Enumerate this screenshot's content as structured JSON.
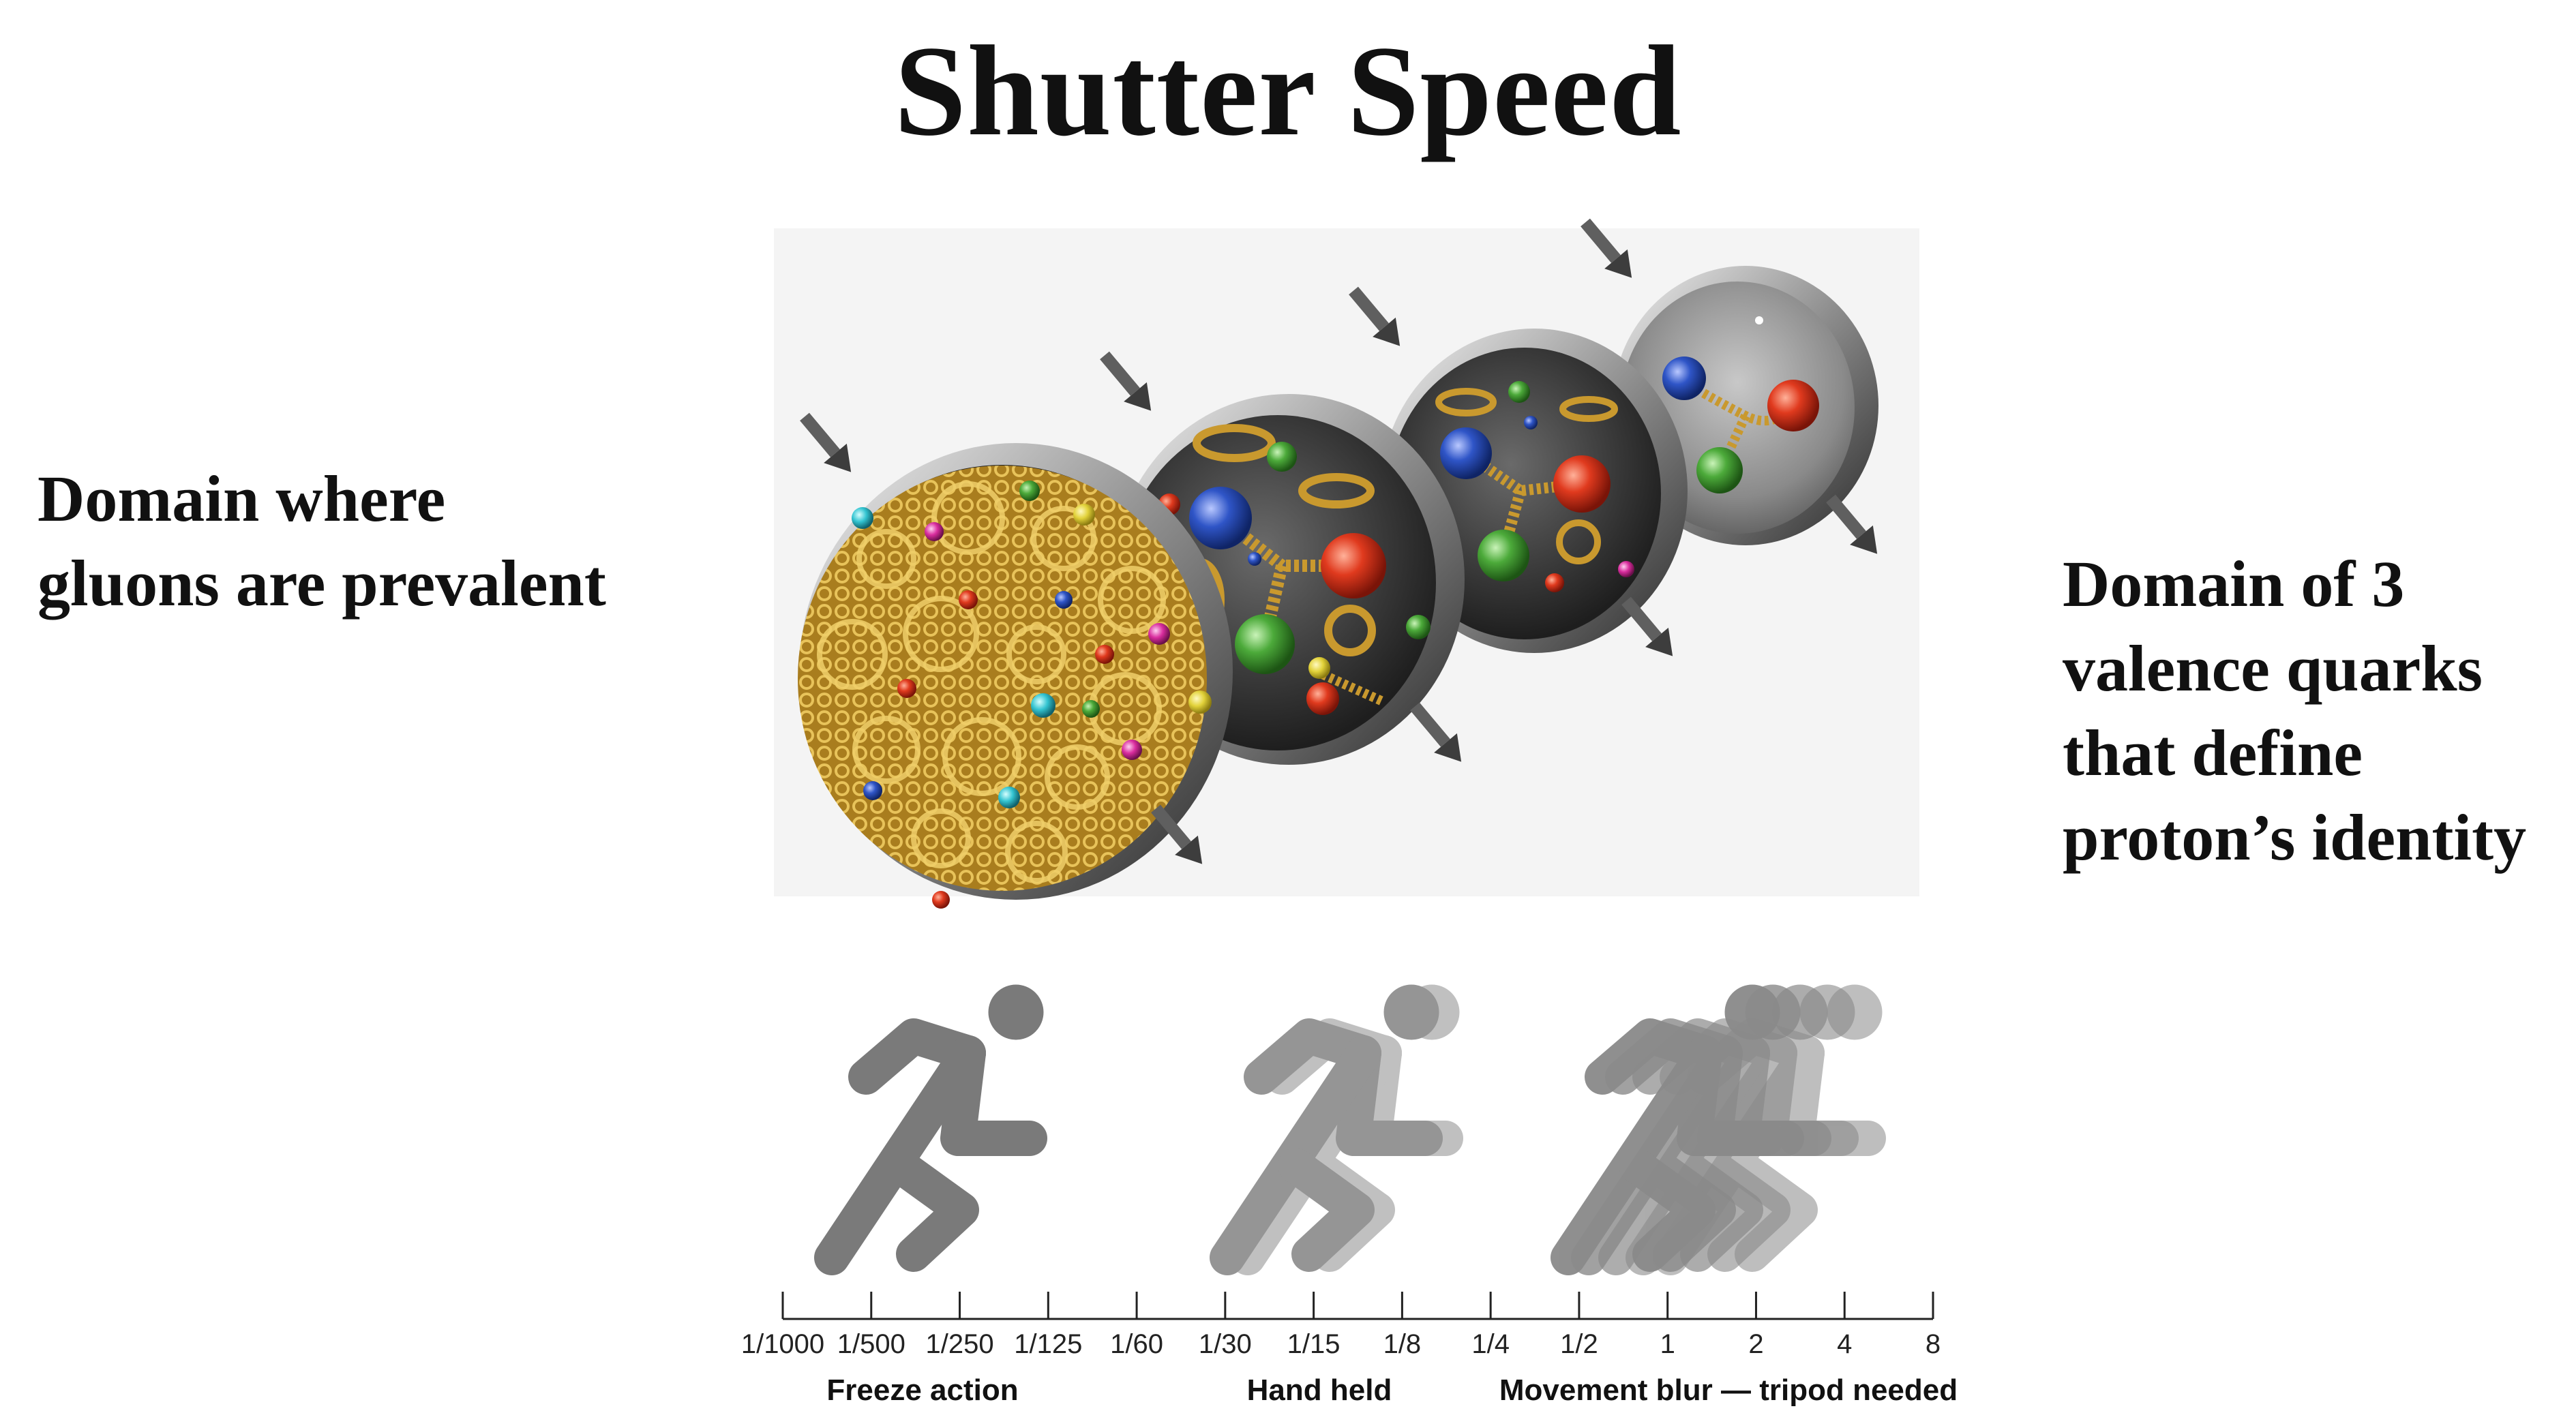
{
  "title": "Shutter Speed",
  "left_caption": [
    "Domain where",
    "gluons are prevalent"
  ],
  "right_caption": [
    "Domain of 3",
    "valence quarks",
    "that define",
    "proton’s identity"
  ],
  "scale": {
    "ticks": [
      "1/1000",
      "1/500",
      "1/250",
      "1/125",
      "1/60",
      "1/30",
      "1/15",
      "1/8",
      "1/4",
      "1/2",
      "1",
      "2",
      "4",
      "8"
    ],
    "categories": [
      "Freeze action",
      "Hand held",
      "Movement blur — tripod needed"
    ]
  },
  "colors": {
    "gluon": "#c9992e",
    "quark_red": "#e03a1e",
    "quark_green": "#4caa3a",
    "quark_blue": "#2f55c7",
    "runner": "#7a7a7a",
    "disc_rim": "#9a9a9a",
    "disc_fill": "#3a3a3a"
  },
  "icons": [
    "proton-disc",
    "runner-icon",
    "arrow-icon"
  ]
}
